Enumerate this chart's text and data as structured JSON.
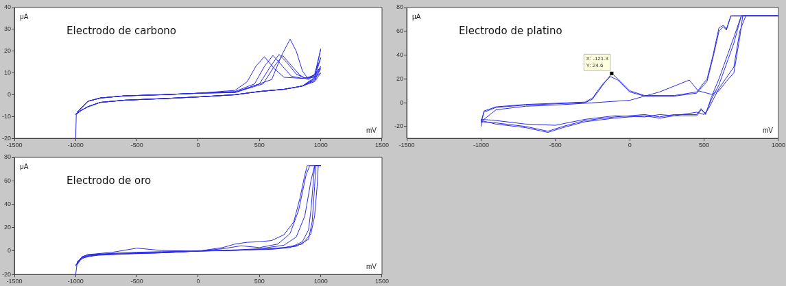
{
  "chart_data": [
    {
      "type": "line",
      "title": "Electrodo de carbono",
      "xlabel": "mV",
      "ylabel": "μA",
      "marker": "none",
      "xlim": [
        -1500,
        1500
      ],
      "xticks": [
        -1500,
        -1000,
        -500,
        0,
        500,
        1000,
        1500
      ],
      "ylim": [
        -20,
        40
      ],
      "yticks": [
        -20,
        -10,
        0,
        10,
        20,
        30,
        40
      ],
      "series": [
        {
          "color": "#2a2ae8",
          "x": [
            -1000,
            -995,
            -950,
            -900,
            -800,
            -600,
            -300,
            0,
            300,
            500,
            700,
            850,
            950,
            1000,
            950,
            850,
            700,
            620,
            540,
            470,
            400,
            300,
            0,
            -300,
            -600,
            -800,
            -900,
            -1000
          ],
          "values": [
            -20,
            -9,
            -7,
            -5.5,
            -3.5,
            -2.5,
            -1.8,
            -1,
            0,
            1.5,
            2.5,
            4,
            6,
            10,
            8,
            7.5,
            8,
            12,
            17.5,
            13,
            6,
            2,
            0.7,
            0,
            -0.5,
            -1.5,
            -3,
            -9
          ]
        },
        {
          "color": "#2a2ae8",
          "x": [
            -1000,
            -950,
            -900,
            -800,
            -600,
            -300,
            0,
            300,
            500,
            700,
            850,
            950,
            1000,
            950,
            850,
            760,
            690,
            610,
            540,
            460,
            300,
            0,
            -300,
            -600,
            -800,
            -900,
            -990
          ],
          "values": [
            -9,
            -7,
            -5.5,
            -3.5,
            -2.5,
            -1.8,
            -1,
            0,
            1.5,
            2.5,
            4,
            6.5,
            12,
            8.5,
            7.5,
            8.5,
            13,
            18,
            13,
            5,
            1.5,
            0.7,
            0,
            -0.5,
            -1.5,
            -3,
            -8
          ]
        },
        {
          "color": "#2a2ae8",
          "x": [
            -1000,
            -950,
            -900,
            -800,
            -600,
            -300,
            0,
            300,
            500,
            700,
            850,
            950,
            1000,
            950,
            870,
            800,
            720,
            660,
            590,
            500,
            300,
            0,
            -300,
            -600,
            -800,
            -900,
            -990
          ],
          "values": [
            -9,
            -7,
            -5.5,
            -3.5,
            -2.5,
            -1.8,
            -1,
            0,
            1.5,
            2.5,
            4,
            7,
            13,
            9,
            7.5,
            9.5,
            15,
            18.5,
            13,
            5,
            1.2,
            0.7,
            0,
            -0.5,
            -1.5,
            -3,
            -8
          ]
        },
        {
          "color": "#2a2ae8",
          "x": [
            -1000,
            -950,
            -900,
            -800,
            -600,
            -300,
            0,
            300,
            500,
            700,
            850,
            950,
            1000,
            950,
            890,
            830,
            750,
            690,
            620,
            530,
            300,
            0,
            -300,
            -600,
            -800,
            -900,
            -990
          ],
          "values": [
            -9,
            -7,
            -5.5,
            -3.5,
            -2.5,
            -1.8,
            -1,
            0,
            1.5,
            2.5,
            4,
            7.5,
            17,
            9.5,
            7,
            9,
            14,
            18,
            13,
            5,
            1,
            0.7,
            0,
            -0.5,
            -1.5,
            -3,
            -8
          ]
        },
        {
          "color": "#2a2ae8",
          "x": [
            -1000,
            -950,
            -900,
            -800,
            -600,
            -300,
            0,
            300,
            500,
            700,
            850,
            950,
            1000,
            950,
            900,
            850,
            800,
            750,
            680,
            600,
            300,
            0,
            -300,
            -600,
            -800,
            -900,
            -990
          ],
          "values": [
            -9,
            -7,
            -5.5,
            -3.5,
            -2.5,
            -1.8,
            -1,
            0,
            1.5,
            2.5,
            4,
            8,
            21,
            9,
            7,
            11,
            20,
            25.5,
            18,
            7,
            1,
            0.7,
            0,
            -0.5,
            -1.5,
            -3,
            -8
          ]
        }
      ]
    },
    {
      "type": "line",
      "title": "Electrodo de platino",
      "xlabel": "mV",
      "ylabel": "μA",
      "marker": "none",
      "xlim": [
        -1500,
        1000
      ],
      "xticks": [
        -1500,
        -1000,
        -500,
        0,
        500,
        1000
      ],
      "ylim": [
        -30,
        80
      ],
      "yticks": [
        -20,
        0,
        20,
        40,
        60,
        80
      ],
      "annotations": [
        {
          "text": "X: -121.3\nY: 24.6",
          "x": -121.3,
          "y": 24.6
        }
      ],
      "series": [
        {
          "color": "#2a2ae8",
          "x": [
            -1000,
            -980,
            -900,
            -700,
            -500,
            -300,
            -250,
            -180,
            -121.3,
            -80,
            0,
            100,
            300,
            450,
            520,
            560,
            600,
            630,
            650,
            680,
            1000,
            750,
            700,
            600,
            550,
            510,
            480,
            450,
            300,
            200,
            100,
            -100,
            -300,
            -450,
            -550,
            -700,
            -900,
            -1000
          ],
          "values": [
            -17,
            -8,
            -4,
            -2,
            -1,
            0,
            3,
            15,
            24.6,
            20,
            10,
            6,
            6,
            9,
            20,
            40,
            63,
            65,
            62,
            73,
            73,
            73,
            55,
            20,
            5,
            -10,
            -5,
            -10,
            -10,
            -12,
            -10,
            -12,
            -15,
            -20,
            -24,
            -20,
            -17,
            -16
          ]
        },
        {
          "color": "#2a2ae8",
          "x": [
            -1000,
            -980,
            -900,
            -700,
            -500,
            -300,
            -250,
            -180,
            -130,
            -80,
            0,
            100,
            300,
            450,
            520,
            560,
            600,
            630,
            650,
            680,
            1000,
            750,
            700,
            600,
            550,
            510,
            480,
            450,
            300,
            200,
            100,
            -100,
            -300,
            -450,
            -550,
            -700,
            -900,
            -1000
          ],
          "values": [
            -16,
            -7,
            -3.5,
            -1.5,
            -0.5,
            0.5,
            4,
            16,
            22,
            19,
            9,
            5.5,
            5.5,
            8,
            18,
            38,
            60,
            64,
            61,
            73,
            73,
            73,
            50,
            15,
            3,
            -9,
            -6,
            -11,
            -11,
            -13,
            -11,
            -13,
            -16,
            -21,
            -25,
            -21,
            -18,
            -15
          ]
        },
        {
          "color": "#2a2ae8",
          "x": [
            -1000,
            -990,
            -900,
            -700,
            -500,
            -300,
            0,
            200,
            400,
            460,
            550,
            600,
            650,
            700,
            740,
            760,
            1000,
            780,
            740,
            700,
            600,
            530,
            500,
            450,
            300,
            200,
            100,
            -100,
            -300,
            -500,
            -700,
            -900,
            -1000
          ],
          "values": [
            -20,
            -15,
            -6,
            -3,
            -2,
            -0.5,
            2,
            9,
            19,
            10,
            7,
            10,
            18,
            25,
            55,
            73,
            73,
            73,
            60,
            30,
            12,
            -5,
            -10,
            -8,
            -11,
            -10,
            -12,
            -11,
            -14,
            -19,
            -18,
            -15,
            -14
          ]
        }
      ]
    },
    {
      "type": "line",
      "title": "Electrodo de oro",
      "xlabel": "mV",
      "ylabel": "μA",
      "marker": "none",
      "xlim": [
        -1500,
        1500
      ],
      "xticks": [
        -1500,
        -1000,
        -500,
        0,
        500,
        1000,
        1500
      ],
      "ylim": [
        -20,
        80
      ],
      "yticks": [
        -20,
        0,
        20,
        40,
        60,
        80
      ],
      "series": [
        {
          "color": "#2a2ae8",
          "x": [
            -1000,
            -990,
            -950,
            -900,
            -700,
            -500,
            -300,
            0,
            200,
            300,
            400,
            500,
            600,
            700,
            780,
            830,
            870,
            890,
            1000,
            950,
            940,
            920,
            900,
            850,
            750,
            600,
            400,
            200,
            0,
            -300,
            -500,
            -800,
            -950,
            -1000
          ],
          "values": [
            -20,
            -12,
            -6,
            -3.5,
            -2,
            -1,
            -0.5,
            0,
            3,
            6,
            7.5,
            8,
            9,
            14,
            25,
            45,
            65,
            73,
            73,
            73,
            60,
            35,
            18,
            8,
            3,
            1.5,
            1,
            0.5,
            0,
            -1.5,
            -2,
            -3,
            -6,
            -12
          ]
        },
        {
          "color": "#2a2ae8",
          "x": [
            -1000,
            -950,
            -900,
            -700,
            -500,
            -300,
            0,
            200,
            350,
            500,
            650,
            750,
            820,
            880,
            910,
            1000,
            960,
            950,
            930,
            900,
            800,
            600,
            400,
            200,
            0,
            -300,
            -500,
            -800,
            -950,
            -990
          ],
          "values": [
            -13,
            -5,
            -3,
            -1,
            2.5,
            0.5,
            0,
            2,
            4.5,
            3,
            6,
            15,
            35,
            65,
            73,
            73,
            73,
            55,
            25,
            10,
            4,
            2,
            1,
            0.5,
            0,
            -1.5,
            -2,
            -3,
            -5,
            -10
          ]
        },
        {
          "color": "#2a2ae8",
          "x": [
            -1000,
            -950,
            -900,
            -700,
            -500,
            -300,
            0,
            300,
            500,
            700,
            800,
            870,
            920,
            950,
            1000,
            980,
            970,
            950,
            920,
            850,
            700,
            500,
            300,
            0,
            -300,
            -600,
            -900,
            -990
          ],
          "values": [
            -12,
            -5,
            -3,
            -2,
            -1.5,
            -1,
            0,
            1,
            2,
            5,
            12,
            30,
            60,
            73,
            73,
            73,
            55,
            30,
            15,
            6,
            3,
            1.5,
            0.5,
            0,
            -1.5,
            -2.5,
            -4,
            -9
          ]
        }
      ]
    }
  ]
}
